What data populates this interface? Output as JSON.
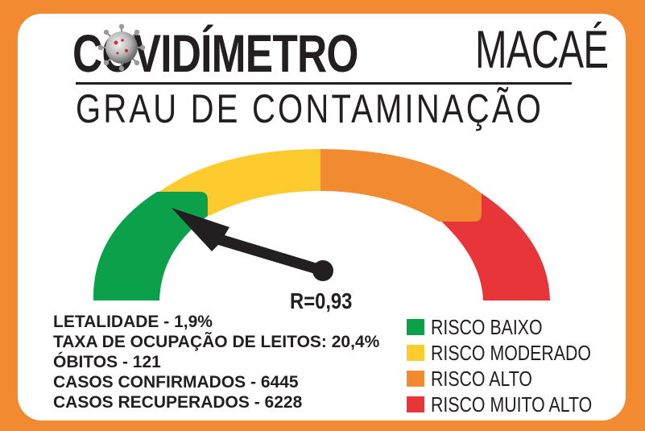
{
  "header": {
    "title_bold": "COVIDÍMETRO",
    "title_light": "MACAÉ",
    "subtitle": "GRAU DE CONTAMINAÇÃO",
    "virus_icon": "coronavirus-icon"
  },
  "gauge": {
    "r_label": "R=0,93",
    "r_value": 0.93,
    "level": "RISCO BAIXO",
    "segments": [
      {
        "label": "RISCO BAIXO",
        "color": "#0BA14B"
      },
      {
        "label": "RISCO MODERADO",
        "color": "#FDCB2E"
      },
      {
        "label": "RISCO ALTO",
        "color": "#F28A32"
      },
      {
        "label": "RISCO MUITO ALTO",
        "color": "#E8353A"
      }
    ]
  },
  "stats": [
    "LETALIDADE - 1,9%",
    "TAXA DE OCUPAÇÃO DE LEITOS: 20,4%",
    "ÓBITOS - 121",
    "CASOS CONFIRMADOS - 6445",
    "CASOS RECUPERADOS - 6228"
  ],
  "legend": [
    {
      "label": "RISCO BAIXO",
      "color": "#0BA14B"
    },
    {
      "label": "RISCO MODERADO",
      "color": "#FDCB2E"
    },
    {
      "label": "RISCO ALTO",
      "color": "#F28A32"
    },
    {
      "label": "RISCO MUITO ALTO",
      "color": "#E8353A"
    }
  ],
  "colors": {
    "background": "#F28A32",
    "card": "#FFFFFF",
    "text": "#231F20"
  }
}
